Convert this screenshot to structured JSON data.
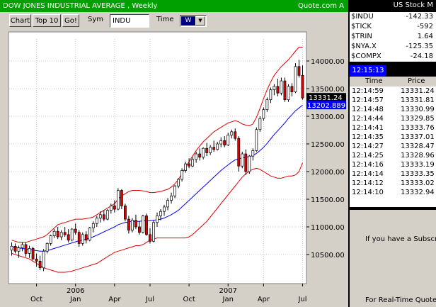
{
  "window": {
    "title": "DOW JONES INDUSTRIAL AVERAGE , Weekly",
    "source": "Quote.com  A"
  },
  "toolbar": {
    "chart_label": "Chart",
    "top10_label": "Top 10",
    "go_label": "Go!",
    "sym_label": "Sym",
    "sym_value": "INDU",
    "time_label": "Time",
    "period_value": "W"
  },
  "panel": {
    "header": "US Stock M",
    "quotes": [
      {
        "symbol": "$INDU",
        "value": "-142.33"
      },
      {
        "symbol": "$TICK",
        "value": "-592"
      },
      {
        "symbol": "$TRIN",
        "value": "1.64"
      },
      {
        "symbol": "$NYA.X",
        "value": "-125.35"
      },
      {
        "symbol": "$COMPX",
        "value": "-24.18"
      }
    ],
    "clock": "12:15:13",
    "trades_header": {
      "time": "Time",
      "price": "Price"
    },
    "trades": [
      {
        "time": "12:14:59",
        "price": "13331.24"
      },
      {
        "time": "12:14:57",
        "price": "13331.81"
      },
      {
        "time": "12:14:48",
        "price": "13330.99"
      },
      {
        "time": "12:14:44",
        "price": "13329.85"
      },
      {
        "time": "12:14:41",
        "price": "13333.76"
      },
      {
        "time": "12:14:35",
        "price": "13337.01"
      },
      {
        "time": "12:14:27",
        "price": "13328.47"
      },
      {
        "time": "12:14:25",
        "price": "13328.96"
      },
      {
        "time": "12:14:16",
        "price": "13333.19"
      },
      {
        "time": "12:14:14",
        "price": "13333.35"
      },
      {
        "time": "12:14:12",
        "price": "13333.02"
      },
      {
        "time": "12:14:10",
        "price": "13332.94"
      }
    ],
    "promo_line1": "If you have a Subscrip",
    "promo_line2": "For Real-Time Quote"
  },
  "chart_data": {
    "type": "candlestick",
    "interval": "Weekly",
    "y_ticks": [
      "14000.00",
      "13500.00",
      "13000.00",
      "12500.00",
      "12000.00",
      "11500.00",
      "11000.00",
      "10500.00"
    ],
    "ylim": [
      10000,
      14500
    ],
    "x_month_labels": [
      "Oct",
      "Jan",
      "Apr",
      "Jul",
      "Oct",
      "Jan",
      "Apr",
      "Jul"
    ],
    "x_year_labels": [
      "2006",
      "2007"
    ],
    "last_price_label": "13331.24",
    "average_price_label": "13202.889",
    "colors": {
      "up": "#ffffff",
      "down": "#e00000",
      "average": "#0000ff",
      "bands": "#e00000",
      "background": "#ffffff"
    },
    "candles": [
      {
        "o": 10580,
        "h": 10720,
        "l": 10480,
        "c": 10650
      },
      {
        "o": 10650,
        "h": 10700,
        "l": 10520,
        "c": 10560
      },
      {
        "o": 10560,
        "h": 10660,
        "l": 10440,
        "c": 10620
      },
      {
        "o": 10620,
        "h": 10720,
        "l": 10560,
        "c": 10680
      },
      {
        "o": 10680,
        "h": 10720,
        "l": 10460,
        "c": 10520
      },
      {
        "o": 10520,
        "h": 10660,
        "l": 10440,
        "c": 10610
      },
      {
        "o": 10610,
        "h": 10640,
        "l": 10400,
        "c": 10420
      },
      {
        "o": 10420,
        "h": 10520,
        "l": 10280,
        "c": 10380
      },
      {
        "o": 10380,
        "h": 10480,
        "l": 10220,
        "c": 10260
      },
      {
        "o": 10260,
        "h": 10600,
        "l": 10200,
        "c": 10560
      },
      {
        "o": 10560,
        "h": 10720,
        "l": 10520,
        "c": 10700
      },
      {
        "o": 10700,
        "h": 10860,
        "l": 10660,
        "c": 10840
      },
      {
        "o": 10840,
        "h": 10960,
        "l": 10800,
        "c": 10920
      },
      {
        "o": 10920,
        "h": 11000,
        "l": 10780,
        "c": 10820
      },
      {
        "o": 10820,
        "h": 10940,
        "l": 10760,
        "c": 10900
      },
      {
        "o": 10900,
        "h": 11000,
        "l": 10820,
        "c": 10860
      },
      {
        "o": 10860,
        "h": 10960,
        "l": 10720,
        "c": 10760
      },
      {
        "o": 10760,
        "h": 10980,
        "l": 10740,
        "c": 10960
      },
      {
        "o": 10960,
        "h": 11060,
        "l": 10860,
        "c": 10900
      },
      {
        "o": 10900,
        "h": 10940,
        "l": 10640,
        "c": 10700
      },
      {
        "o": 10700,
        "h": 10900,
        "l": 10660,
        "c": 10860
      },
      {
        "o": 10860,
        "h": 10920,
        "l": 10700,
        "c": 10760
      },
      {
        "o": 10760,
        "h": 11000,
        "l": 10740,
        "c": 10980
      },
      {
        "o": 10980,
        "h": 11100,
        "l": 10900,
        "c": 11060
      },
      {
        "o": 11060,
        "h": 11200,
        "l": 11000,
        "c": 11160
      },
      {
        "o": 11160,
        "h": 11280,
        "l": 11080,
        "c": 11220
      },
      {
        "o": 11220,
        "h": 11300,
        "l": 11100,
        "c": 11140
      },
      {
        "o": 11140,
        "h": 11320,
        "l": 11120,
        "c": 11300
      },
      {
        "o": 11300,
        "h": 11420,
        "l": 11240,
        "c": 11380
      },
      {
        "o": 11380,
        "h": 11480,
        "l": 11260,
        "c": 11320
      },
      {
        "o": 11320,
        "h": 11700,
        "l": 11300,
        "c": 11660
      },
      {
        "o": 11660,
        "h": 11680,
        "l": 11320,
        "c": 11380
      },
      {
        "o": 11380,
        "h": 11420,
        "l": 11100,
        "c": 11140
      },
      {
        "o": 11140,
        "h": 11200,
        "l": 10880,
        "c": 10940
      },
      {
        "o": 10940,
        "h": 11160,
        "l": 10900,
        "c": 11120
      },
      {
        "o": 11120,
        "h": 11220,
        "l": 10960,
        "c": 11000
      },
      {
        "o": 11000,
        "h": 11100,
        "l": 10860,
        "c": 10900
      },
      {
        "o": 10900,
        "h": 11220,
        "l": 10880,
        "c": 11200
      },
      {
        "o": 11200,
        "h": 11240,
        "l": 10840,
        "c": 10860
      },
      {
        "o": 10860,
        "h": 10980,
        "l": 10700,
        "c": 10740
      },
      {
        "o": 10740,
        "h": 11120,
        "l": 10720,
        "c": 11080
      },
      {
        "o": 11080,
        "h": 11260,
        "l": 11000,
        "c": 11200
      },
      {
        "o": 11200,
        "h": 11320,
        "l": 11120,
        "c": 11280
      },
      {
        "o": 11280,
        "h": 11400,
        "l": 11200,
        "c": 11360
      },
      {
        "o": 11360,
        "h": 11520,
        "l": 11300,
        "c": 11480
      },
      {
        "o": 11480,
        "h": 11620,
        "l": 11420,
        "c": 11560
      },
      {
        "o": 11560,
        "h": 11760,
        "l": 11520,
        "c": 11740
      },
      {
        "o": 11740,
        "h": 11880,
        "l": 11700,
        "c": 11860
      },
      {
        "o": 11860,
        "h": 12060,
        "l": 11820,
        "c": 12020
      },
      {
        "o": 12020,
        "h": 12180,
        "l": 11980,
        "c": 12140
      },
      {
        "o": 12140,
        "h": 12240,
        "l": 12060,
        "c": 12100
      },
      {
        "o": 12100,
        "h": 12260,
        "l": 12080,
        "c": 12220
      },
      {
        "o": 12220,
        "h": 12360,
        "l": 12160,
        "c": 12320
      },
      {
        "o": 12320,
        "h": 12420,
        "l": 12200,
        "c": 12260
      },
      {
        "o": 12260,
        "h": 12440,
        "l": 12220,
        "c": 12420
      },
      {
        "o": 12420,
        "h": 12520,
        "l": 12280,
        "c": 12340
      },
      {
        "o": 12340,
        "h": 12480,
        "l": 12300,
        "c": 12440
      },
      {
        "o": 12440,
        "h": 12560,
        "l": 12360,
        "c": 12400
      },
      {
        "o": 12400,
        "h": 12540,
        "l": 12380,
        "c": 12500
      },
      {
        "o": 12500,
        "h": 12620,
        "l": 12440,
        "c": 12560
      },
      {
        "o": 12560,
        "h": 12640,
        "l": 12440,
        "c": 12480
      },
      {
        "o": 12480,
        "h": 12700,
        "l": 12460,
        "c": 12660
      },
      {
        "o": 12660,
        "h": 12760,
        "l": 12600,
        "c": 12720
      },
      {
        "o": 12720,
        "h": 12780,
        "l": 12560,
        "c": 12600
      },
      {
        "o": 12600,
        "h": 12640,
        "l": 12000,
        "c": 12100
      },
      {
        "o": 12100,
        "h": 12360,
        "l": 12060,
        "c": 12320
      },
      {
        "o": 12320,
        "h": 12400,
        "l": 11940,
        "c": 12000
      },
      {
        "o": 12000,
        "h": 12300,
        "l": 11960,
        "c": 12280
      },
      {
        "o": 12280,
        "h": 12420,
        "l": 12200,
        "c": 12380
      },
      {
        "o": 12380,
        "h": 12800,
        "l": 12360,
        "c": 12760
      },
      {
        "o": 12760,
        "h": 13000,
        "l": 12720,
        "c": 12960
      },
      {
        "o": 12960,
        "h": 13160,
        "l": 12920,
        "c": 13120
      },
      {
        "o": 13120,
        "h": 13340,
        "l": 13080,
        "c": 13300
      },
      {
        "o": 13300,
        "h": 13520,
        "l": 13240,
        "c": 13480
      },
      {
        "o": 13480,
        "h": 13580,
        "l": 13380,
        "c": 13540
      },
      {
        "o": 13540,
        "h": 13680,
        "l": 13360,
        "c": 13420
      },
      {
        "o": 13420,
        "h": 13700,
        "l": 13380,
        "c": 13640
      },
      {
        "o": 13640,
        "h": 13700,
        "l": 13260,
        "c": 13300
      },
      {
        "o": 13300,
        "h": 13580,
        "l": 13260,
        "c": 13540
      },
      {
        "o": 13540,
        "h": 13600,
        "l": 13360,
        "c": 13440
      },
      {
        "o": 13440,
        "h": 13960,
        "l": 13420,
        "c": 13900
      },
      {
        "o": 13900,
        "h": 14020,
        "l": 13700,
        "c": 13740
      },
      {
        "o": 13740,
        "h": 13920,
        "l": 13300,
        "c": 13331
      }
    ],
    "moving_average": [
      10640,
      10630,
      10620,
      10610,
      10600,
      10590,
      10580,
      10570,
      10560,
      10560,
      10570,
      10590,
      10610,
      10630,
      10650,
      10670,
      10690,
      10710,
      10730,
      10750,
      10760,
      10780,
      10800,
      10820,
      10850,
      10880,
      10910,
      10940,
      10970,
      11000,
      11040,
      11060,
      11080,
      11090,
      11100,
      11100,
      11100,
      11110,
      11110,
      11110,
      11120,
      11130,
      11140,
      11160,
      11190,
      11220,
      11260,
      11300,
      11360,
      11420,
      11480,
      11540,
      11600,
      11660,
      11720,
      11780,
      11840,
      11900,
      11960,
      12020,
      12070,
      12120,
      12170,
      12210,
      12230,
      12250,
      12260,
      12270,
      12290,
      12330,
      12380,
      12440,
      12510,
      12590,
      12670,
      12740,
      12810,
      12880,
      12960,
      13030,
      13100,
      13150,
      13203
    ],
    "upper_band": [
      10760,
      10740,
      10720,
      10720,
      10720,
      10740,
      10760,
      10780,
      10800,
      10820,
      10860,
      10920,
      10980,
      11040,
      11060,
      11080,
      11100,
      11120,
      11140,
      11140,
      11140,
      11150,
      11160,
      11180,
      11220,
      11260,
      11300,
      11340,
      11380,
      11420,
      11500,
      11560,
      11600,
      11640,
      11660,
      11660,
      11660,
      11650,
      11640,
      11620,
      11620,
      11630,
      11640,
      11660,
      11680,
      11720,
      11780,
      11860,
      11960,
      12080,
      12180,
      12280,
      12380,
      12460,
      12540,
      12600,
      12660,
      12720,
      12760,
      12800,
      12840,
      12880,
      12900,
      12920,
      12900,
      12860,
      12840,
      12830,
      12860,
      12980,
      13140,
      13320,
      13480,
      13620,
      13740,
      13820,
      13900,
      13960,
      14020,
      14100,
      14180,
      14250,
      14250
    ],
    "lower_band": [
      10520,
      10500,
      10480,
      10460,
      10440,
      10420,
      10380,
      10340,
      10300,
      10260,
      10240,
      10220,
      10200,
      10180,
      10180,
      10180,
      10190,
      10200,
      10220,
      10240,
      10260,
      10280,
      10300,
      10320,
      10340,
      10380,
      10420,
      10460,
      10500,
      10540,
      10560,
      10580,
      10600,
      10620,
      10640,
      10660,
      10660,
      10680,
      10720,
      10760,
      10780,
      10800,
      10800,
      10800,
      10800,
      10800,
      10800,
      10800,
      10800,
      10800,
      10820,
      10860,
      10920,
      10980,
      11040,
      11100,
      11180,
      11260,
      11340,
      11420,
      11500,
      11580,
      11660,
      11740,
      11820,
      11900,
      11960,
      12010,
      12040,
      12060,
      12040,
      12000,
      11960,
      11920,
      11900,
      11880,
      11880,
      11900,
      11920,
      11920,
      11940,
      12000,
      12160
    ]
  }
}
